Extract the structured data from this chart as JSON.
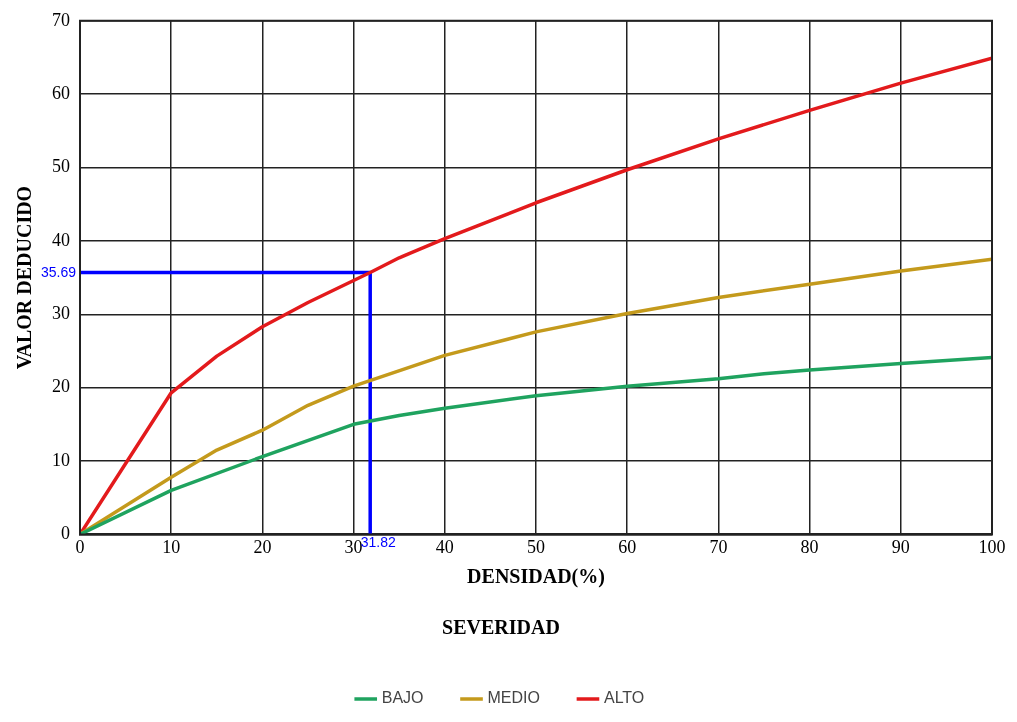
{
  "chart_data": {
    "type": "line",
    "xlabel": "DENSIDAD(%)",
    "ylabel": "VALOR DEDUCIDO",
    "legend_title": "SEVERIDAD",
    "xlim": [
      0,
      100
    ],
    "xticks": [
      0,
      10,
      20,
      30,
      40,
      50,
      60,
      70,
      80,
      90,
      100
    ],
    "ylim": [
      0,
      70
    ],
    "yticks": [
      0,
      10,
      20,
      30,
      40,
      50,
      60,
      70
    ],
    "grid": true,
    "legend": "bottom",
    "marker": "none",
    "line_style": "solid",
    "series": [
      {
        "name": "BAJO",
        "color": "#1fa35f",
        "x": [
          0,
          10,
          20,
          30,
          35,
          40,
          50,
          60,
          70,
          75,
          80,
          90,
          100
        ],
        "values": [
          0,
          6.0,
          10.6,
          15.0,
          16.2,
          17.2,
          18.9,
          20.2,
          21.2,
          21.9,
          22.4,
          23.3,
          24.1
        ]
      },
      {
        "name": "MEDIO",
        "color": "#c49a1c",
        "x": [
          0,
          10,
          15,
          20,
          25,
          30,
          40,
          50,
          60,
          70,
          80,
          90,
          100
        ],
        "values": [
          0,
          7.8,
          11.5,
          14.2,
          17.6,
          20.2,
          24.4,
          27.6,
          30.1,
          32.3,
          34.1,
          35.9,
          37.5
        ]
      },
      {
        "name": "ALTO",
        "color": "#e31a1c",
        "x": [
          0,
          10,
          15,
          20,
          25,
          31.82,
          35,
          40,
          50,
          60,
          70,
          80,
          90,
          100
        ],
        "values": [
          0,
          19.3,
          24.3,
          28.3,
          31.6,
          35.69,
          37.7,
          40.3,
          45.2,
          49.7,
          53.9,
          57.8,
          61.5,
          64.9
        ]
      },
      {
        "type": "line",
        "color": "#0000ff",
        "x": [
          0,
          31.82,
          31.82
        ],
        "values": [
          35.69,
          35.69,
          0
        ]
      }
    ],
    "annotations": [
      {
        "text": "35.69",
        "x": 0,
        "y": 35.69
      },
      {
        "text": "31.82",
        "x": 31.82,
        "y": 0
      }
    ]
  }
}
